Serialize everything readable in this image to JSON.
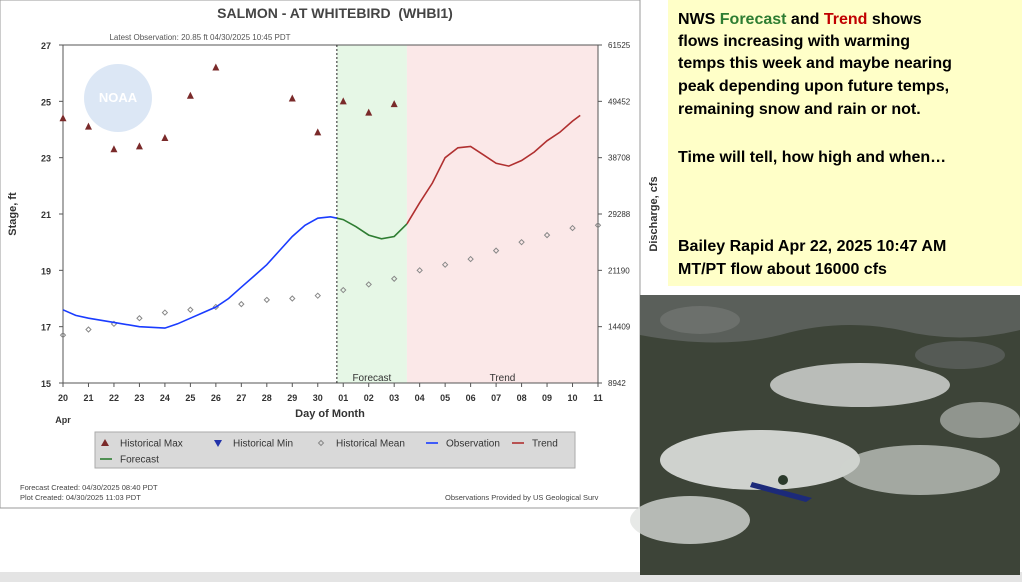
{
  "chart_data": {
    "type": "line",
    "title": "SALMON - AT WHITEBIRD  (WHBI1)",
    "subtitle": "Latest Observation: 20.85 ft 04/30/2025 10:45 PDT",
    "watermark": "NOAA",
    "xlabel": "Day of Month",
    "month_label": "Apr",
    "ylabel": "Stage, ft",
    "y2label": "Discharge, cfs",
    "xlim": [
      20,
      41
    ],
    "xticks": [
      20,
      21,
      22,
      23,
      24,
      25,
      26,
      27,
      28,
      29,
      30,
      {
        "value": 31,
        "label": "01"
      },
      {
        "value": 32,
        "label": "02"
      },
      {
        "value": 33,
        "label": "03"
      },
      {
        "value": 34,
        "label": "04"
      },
      {
        "value": 35,
        "label": "05"
      },
      {
        "value": 36,
        "label": "06"
      },
      {
        "value": 37,
        "label": "07"
      },
      {
        "value": 38,
        "label": "08"
      },
      {
        "value": 39,
        "label": "09"
      },
      {
        "value": 40,
        "label": "10"
      },
      {
        "value": 41,
        "label": "11"
      }
    ],
    "ylim": [
      15,
      27
    ],
    "yticks": [
      15,
      17,
      19,
      21,
      23,
      25,
      27
    ],
    "y2ticks": [
      8942,
      14409,
      21190,
      29288,
      38708,
      49452,
      61525
    ],
    "y2_scale": "rating",
    "grid": false,
    "latest_observation_x": 30.75,
    "regions": [
      {
        "name": "Forecast",
        "range": [
          30.75,
          33.5
        ],
        "color": "#e6f7e6"
      },
      {
        "name": "Trend",
        "range": [
          33.5,
          41
        ],
        "color": "#fbe8e8"
      }
    ],
    "series": [
      {
        "name": "Historical Max",
        "marker": "triangle-up",
        "color": "#7a2a2a",
        "x": [
          20,
          21,
          22,
          23,
          24,
          25,
          26,
          29,
          30,
          31,
          32,
          33
        ],
        "values": [
          24.4,
          24.1,
          23.3,
          23.4,
          23.7,
          25.2,
          26.2,
          25.1,
          23.9,
          25.0,
          24.6,
          24.9
        ]
      },
      {
        "name": "Historical Min",
        "marker": "triangle-down",
        "color": "#2233aa",
        "x": [],
        "values": []
      },
      {
        "name": "Historical Mean",
        "marker": "diamond",
        "color": "#888888",
        "x": [
          20,
          21,
          22,
          23,
          24,
          25,
          26,
          27,
          28,
          29,
          30,
          31,
          32,
          33,
          34,
          35,
          36,
          37,
          38,
          39,
          40,
          41
        ],
        "values": [
          16.7,
          16.9,
          17.1,
          17.3,
          17.5,
          17.6,
          17.7,
          17.8,
          17.95,
          18.0,
          18.1,
          18.3,
          18.5,
          18.7,
          19.0,
          19.2,
          19.4,
          19.7,
          20.0,
          20.25,
          20.5,
          20.6
        ]
      },
      {
        "name": "Observation",
        "marker": "line",
        "color": "#1a3cff",
        "x": [
          20,
          20.5,
          21,
          22,
          23,
          24,
          24.5,
          25,
          25.5,
          26,
          26.5,
          27,
          27.5,
          28,
          28.5,
          29,
          29.5,
          30,
          30.5,
          30.75
        ],
        "values": [
          17.6,
          17.4,
          17.3,
          17.15,
          17.0,
          16.95,
          17.1,
          17.3,
          17.5,
          17.7,
          18.0,
          18.4,
          18.8,
          19.2,
          19.7,
          20.2,
          20.6,
          20.85,
          20.9,
          20.85
        ]
      },
      {
        "name": "Trend",
        "marker": "line",
        "color": "#b03030",
        "x": [
          33.5,
          34,
          34.5,
          35,
          35.5,
          36,
          36.5,
          37,
          37.5,
          38,
          38.5,
          39,
          39.5,
          40,
          40.3
        ],
        "values": [
          20.65,
          21.4,
          22.1,
          23.0,
          23.35,
          23.4,
          23.1,
          22.8,
          22.7,
          22.9,
          23.2,
          23.6,
          23.9,
          24.3,
          24.5
        ]
      },
      {
        "name": "Forecast",
        "marker": "line",
        "color": "#2e7d32",
        "x": [
          30.75,
          31,
          31.5,
          32,
          32.5,
          33,
          33.5
        ],
        "values": [
          20.85,
          20.8,
          20.55,
          20.25,
          20.12,
          20.2,
          20.65
        ]
      }
    ],
    "footer_left": [
      "Forecast Created: 04/30/2025 08:40 PDT",
      "Plot Created: 04/30/2025 11:03 PDT"
    ],
    "footer_right": "Observations Provided by US Geological Surv"
  },
  "notes_panel": {
    "lines": [
      [
        {
          "text": "NWS "
        },
        {
          "text": "Forecast",
          "color": "#2e7d32"
        },
        {
          "text": " and "
        },
        {
          "text": "Trend",
          "color": "#c00000"
        },
        {
          "text": " shows"
        }
      ],
      [
        {
          "text": "flows increasing with warming"
        }
      ],
      [
        {
          "text": "temps this week and maybe nearing"
        }
      ],
      [
        {
          "text": "peak depending upon future temps,"
        }
      ],
      [
        {
          "text": "remaining snow and rain or not."
        }
      ],
      [
        {
          "text": "Time will tell, how high and when…"
        }
      ],
      [
        {
          "text": "Bailey Rapid Apr 22, 2025 10:47 AM"
        }
      ],
      [
        {
          "text": "MT/PT flow about 16000 cfs"
        }
      ]
    ]
  }
}
